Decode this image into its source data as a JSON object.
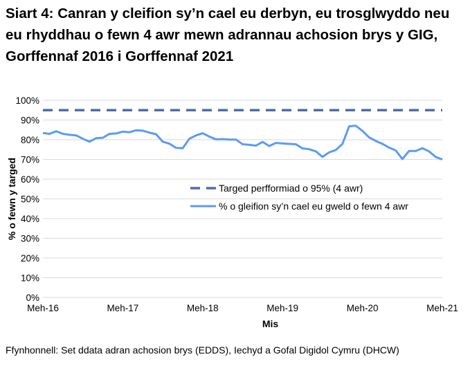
{
  "chart_data": {
    "type": "line",
    "title": "Siart 4: Canran y cleifion sy’n cael eu derbyn, eu trosglwyddo neu eu rhyddhau o fewn 4 awr mewn adrannau achosion brys y GIG, Gorffennaf 2016 i Gorffennaf 2021",
    "xlabel": "Mis",
    "ylabel": "% o fewn y targed",
    "ylim": [
      0,
      100
    ],
    "yticks": [
      "0%",
      "10%",
      "20%",
      "30%",
      "40%",
      "50%",
      "60%",
      "70%",
      "80%",
      "90%",
      "100%"
    ],
    "xticks": [
      "Meh-16",
      "Meh-17",
      "Meh-18",
      "Meh-19",
      "Meh-20",
      "Meh-21"
    ],
    "grid": true,
    "legend_placement": "center-right",
    "series": [
      {
        "name": "Targed perfformiad o 95% (4 awr)",
        "style": "dashed",
        "color": "#4a6fa5",
        "values": [
          95
        ]
      },
      {
        "name": "% o gleifion sy’n cael eu gweld o fewn 4 awr",
        "style": "solid",
        "color": "#5b9bf5",
        "values": [
          83.4,
          83.0,
          84.3,
          83.0,
          82.5,
          82.2,
          80.5,
          79.0,
          80.8,
          81.0,
          83.0,
          83.2,
          84.1,
          83.8,
          84.8,
          84.6,
          83.6,
          82.8,
          79.0,
          78.0,
          75.9,
          75.7,
          80.5,
          82.2,
          83.3,
          81.6,
          80.2,
          80.3,
          80.1,
          80.1,
          77.7,
          77.4,
          77.0,
          78.9,
          76.8,
          78.4,
          78.1,
          77.9,
          77.7,
          75.6,
          75.2,
          74.1,
          71.3,
          73.6,
          74.8,
          77.9,
          86.8,
          87.1,
          84.5,
          81.2,
          79.4,
          77.9,
          76.0,
          74.6,
          70.2,
          74.3,
          74.3,
          75.7,
          74.1,
          71.3,
          70.0
        ]
      }
    ]
  },
  "footer": "Ffynhonnell: Set ddata adran achosion brys (EDDS), Iechyd a Gofal Digidol Cymru (DHCW)"
}
